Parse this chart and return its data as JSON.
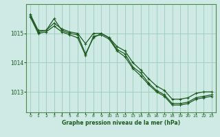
{
  "background_color": "#cfe9e5",
  "plot_bg_color": "#cfe9e5",
  "grid_color": "#9fcfbf",
  "line_color": "#1a5c1a",
  "border_color": "#4a8a4a",
  "xlabel": "Graphe pression niveau de la mer (hPa)",
  "ylim": [
    1012.3,
    1016.0
  ],
  "xlim": [
    -0.5,
    23.5
  ],
  "yticks": [
    1013,
    1014,
    1015
  ],
  "xticks": [
    0,
    1,
    2,
    3,
    4,
    5,
    6,
    7,
    8,
    9,
    10,
    11,
    12,
    13,
    14,
    15,
    16,
    17,
    18,
    19,
    20,
    21,
    22,
    23
  ],
  "series1": [
    1015.65,
    1015.1,
    1015.1,
    1015.35,
    1015.15,
    1015.05,
    1015.0,
    1014.65,
    1015.0,
    1015.0,
    1014.85,
    1014.55,
    1014.4,
    1014.0,
    1013.75,
    1013.45,
    1013.2,
    1013.05,
    1012.75,
    1012.75,
    1012.8,
    1012.95,
    1013.0,
    1013.0
  ],
  "series2": [
    1015.6,
    1015.05,
    1015.1,
    1015.5,
    1015.1,
    1015.0,
    1014.95,
    1014.3,
    1014.85,
    1015.0,
    1014.85,
    1014.45,
    1014.3,
    1013.85,
    1013.65,
    1013.3,
    1013.05,
    1012.9,
    1012.6,
    1012.6,
    1012.65,
    1012.8,
    1012.85,
    1012.9
  ],
  "series3": [
    1015.55,
    1015.0,
    1015.05,
    1015.25,
    1015.05,
    1014.95,
    1014.85,
    1014.25,
    1014.9,
    1014.95,
    1014.8,
    1014.4,
    1014.2,
    1013.8,
    1013.55,
    1013.25,
    1013.0,
    1012.85,
    1012.55,
    1012.55,
    1012.6,
    1012.75,
    1012.8,
    1012.85
  ]
}
